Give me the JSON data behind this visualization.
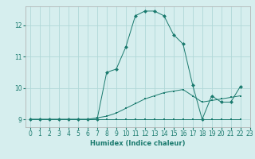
{
  "xlabel": "Humidex (Indice chaleur)",
  "ylabel": "",
  "background_color": "#d6eeee",
  "line_color": "#1a7a6e",
  "grid_color": "#b0d8d8",
  "xlim": [
    -0.5,
    23
  ],
  "ylim": [
    8.75,
    12.6
  ],
  "yticks": [
    9,
    10,
    11,
    12
  ],
  "xticks": [
    0,
    1,
    2,
    3,
    4,
    5,
    6,
    7,
    8,
    9,
    10,
    11,
    12,
    13,
    14,
    15,
    16,
    17,
    18,
    19,
    20,
    21,
    22,
    23
  ],
  "series1": [
    [
      0,
      9.0
    ],
    [
      1,
      9.0
    ],
    [
      2,
      9.0
    ],
    [
      3,
      9.0
    ],
    [
      4,
      9.0
    ],
    [
      5,
      9.0
    ],
    [
      6,
      9.0
    ],
    [
      7,
      9.0
    ],
    [
      8,
      10.5
    ],
    [
      9,
      10.6
    ],
    [
      10,
      11.3
    ],
    [
      11,
      12.3
    ],
    [
      12,
      12.45
    ],
    [
      13,
      12.45
    ],
    [
      14,
      12.3
    ],
    [
      15,
      11.7
    ],
    [
      16,
      11.4
    ],
    [
      17,
      10.1
    ],
    [
      18,
      9.0
    ],
    [
      19,
      9.75
    ],
    [
      20,
      9.55
    ],
    [
      21,
      9.55
    ],
    [
      22,
      10.05
    ]
  ],
  "series2": [
    [
      0,
      9.0
    ],
    [
      1,
      9.0
    ],
    [
      2,
      9.0
    ],
    [
      3,
      9.0
    ],
    [
      4,
      9.0
    ],
    [
      5,
      9.0
    ],
    [
      6,
      9.0
    ],
    [
      7,
      9.05
    ],
    [
      8,
      9.1
    ],
    [
      9,
      9.2
    ],
    [
      10,
      9.35
    ],
    [
      11,
      9.5
    ],
    [
      12,
      9.65
    ],
    [
      13,
      9.75
    ],
    [
      14,
      9.85
    ],
    [
      15,
      9.9
    ],
    [
      16,
      9.95
    ],
    [
      17,
      9.75
    ],
    [
      18,
      9.55
    ],
    [
      19,
      9.6
    ],
    [
      20,
      9.65
    ],
    [
      21,
      9.7
    ],
    [
      22,
      9.75
    ]
  ],
  "series3": [
    [
      0,
      9.0
    ],
    [
      1,
      9.0
    ],
    [
      2,
      9.0
    ],
    [
      3,
      9.0
    ],
    [
      4,
      9.0
    ],
    [
      5,
      9.0
    ],
    [
      6,
      9.0
    ],
    [
      7,
      9.0
    ],
    [
      8,
      9.0
    ],
    [
      9,
      9.0
    ],
    [
      10,
      9.0
    ],
    [
      11,
      9.0
    ],
    [
      12,
      9.0
    ],
    [
      13,
      9.0
    ],
    [
      14,
      9.0
    ],
    [
      15,
      9.0
    ],
    [
      16,
      9.0
    ],
    [
      17,
      9.0
    ],
    [
      18,
      9.0
    ],
    [
      19,
      9.0
    ],
    [
      20,
      9.0
    ],
    [
      21,
      9.0
    ],
    [
      22,
      9.0
    ]
  ]
}
